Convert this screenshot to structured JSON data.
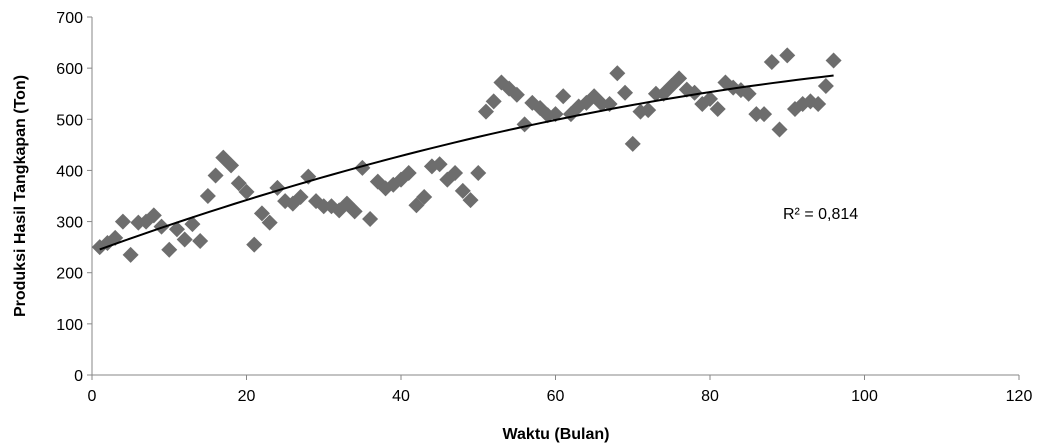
{
  "chart_data": {
    "type": "scatter",
    "title": "",
    "xlabel": "Waktu (Bulan)",
    "ylabel": "Produksi Hasil Tangkapan (Ton)",
    "xlim": [
      0,
      120
    ],
    "ylim": [
      0,
      700
    ],
    "xticks": [
      0,
      20,
      40,
      60,
      80,
      100,
      120
    ],
    "yticks": [
      0,
      100,
      200,
      300,
      400,
      500,
      600,
      700
    ],
    "xtick_labels": [
      "0",
      "20",
      "40",
      "60",
      "80",
      "100",
      "120"
    ],
    "ytick_labels": [
      "0",
      "100",
      "200",
      "300",
      "400",
      "500",
      "600",
      "700"
    ],
    "grid": false,
    "legend": "none",
    "marker": "diamond",
    "marker_color": "#6d6d6d",
    "trendline_color": "#000000",
    "annotation": "R² = 0,814",
    "series": [
      {
        "x": [
          1,
          2,
          3,
          4,
          5,
          6,
          7,
          8,
          9,
          10,
          11,
          12,
          13,
          14,
          15,
          16,
          17,
          18,
          19,
          20,
          21,
          22,
          23,
          24,
          25,
          26,
          27,
          28,
          29,
          30,
          31,
          32,
          33,
          34,
          35,
          36,
          37,
          38,
          39,
          40,
          41,
          42,
          43,
          44,
          45,
          46,
          47,
          48,
          49,
          50,
          51,
          52,
          53,
          54,
          55,
          56,
          57,
          58,
          59,
          60,
          61,
          62,
          63,
          64,
          65,
          66,
          67,
          68,
          69,
          70,
          71,
          72,
          73,
          74,
          75,
          76,
          77,
          78,
          79,
          80,
          81,
          82,
          83,
          84,
          85,
          86,
          87,
          88,
          89,
          90,
          91,
          92,
          93,
          94,
          95,
          96
        ],
        "y": [
          250,
          258,
          268,
          300,
          235,
          298,
          300,
          312,
          290,
          245,
          285,
          265,
          295,
          262,
          350,
          390,
          425,
          410,
          375,
          358,
          255,
          316,
          298,
          366,
          340,
          335,
          348,
          388,
          340,
          330,
          330,
          322,
          335,
          320,
          405,
          305,
          378,
          365,
          372,
          382,
          395,
          332,
          348,
          408,
          412,
          382,
          395,
          360,
          342,
          395,
          515,
          535,
          572,
          560,
          548,
          490,
          532,
          522,
          508,
          510,
          545,
          510,
          525,
          532,
          545,
          530,
          530,
          590,
          552,
          452,
          515,
          518,
          550,
          550,
          565,
          580,
          558,
          552,
          530,
          540,
          520,
          572,
          562,
          557,
          550,
          510,
          510,
          612,
          480,
          625,
          520,
          530,
          535,
          530,
          565,
          615
        ]
      }
    ],
    "trendline": {
      "type": "polynomial",
      "x_range": [
        1,
        96
      ],
      "coefficients": [
        240,
        5.5,
        -0.0198
      ]
    }
  }
}
